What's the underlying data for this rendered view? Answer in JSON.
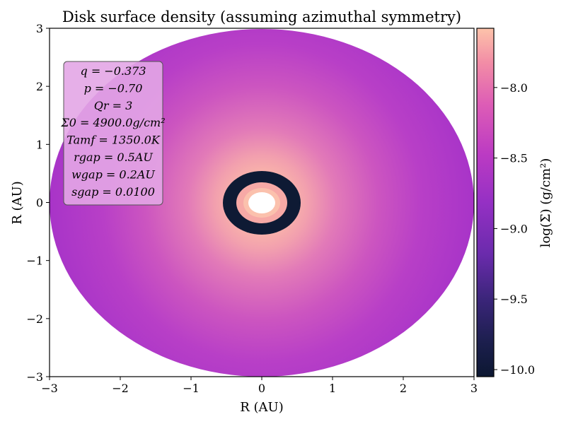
{
  "chart_data": {
    "type": "heatmap",
    "title": "Disk surface density (assuming azimuthal symmetry)",
    "xlabel": "R (AU)",
    "ylabel": "R (AU)",
    "xlim": [
      -3,
      3
    ],
    "ylim": [
      -3,
      3
    ],
    "xticks": [
      "−3",
      "−2",
      "−1",
      "0",
      "1",
      "2",
      "3"
    ],
    "yticks": [
      "3",
      "2",
      "1",
      "0",
      "−1",
      "−2",
      "−3"
    ],
    "colorbar": {
      "label": "log(Σ) (g/cm²)",
      "ticks": [
        "−8.0",
        "−8.5",
        "−9.0",
        "−9.5",
        "−10.0"
      ],
      "tick_values": [
        -8.0,
        -8.5,
        -9.0,
        -9.5,
        -10.0
      ],
      "range": [
        -10.05,
        -7.58
      ],
      "colormap": "magma-like (dark navy to salmon)",
      "colors": [
        "#0c1731",
        "#2a2060",
        "#5b2aa0",
        "#8d2ec3",
        "#b432c4",
        "#d34cbb",
        "#ee7ea7",
        "#fcbca8"
      ]
    },
    "disk": {
      "outer_radius_au": 3.0,
      "inner_hole_radius_au": 0.2,
      "gap_inner_radius_au": 0.4,
      "gap_outer_radius_au": 0.6,
      "center_log_sigma": -7.6,
      "edge_log_sigma": -8.7,
      "gap_log_sigma": -10.0
    },
    "annotation": [
      "q = −0.373",
      "p = −0.70",
      "Qr = 3",
      "Σ0 = 4900.0g/cm²",
      "Tamf = 1350.0K",
      "rgap = 0.5AU",
      "wgap = 0.2AU",
      "sgap = 0.0100"
    ],
    "grid": false,
    "legend": "none"
  }
}
